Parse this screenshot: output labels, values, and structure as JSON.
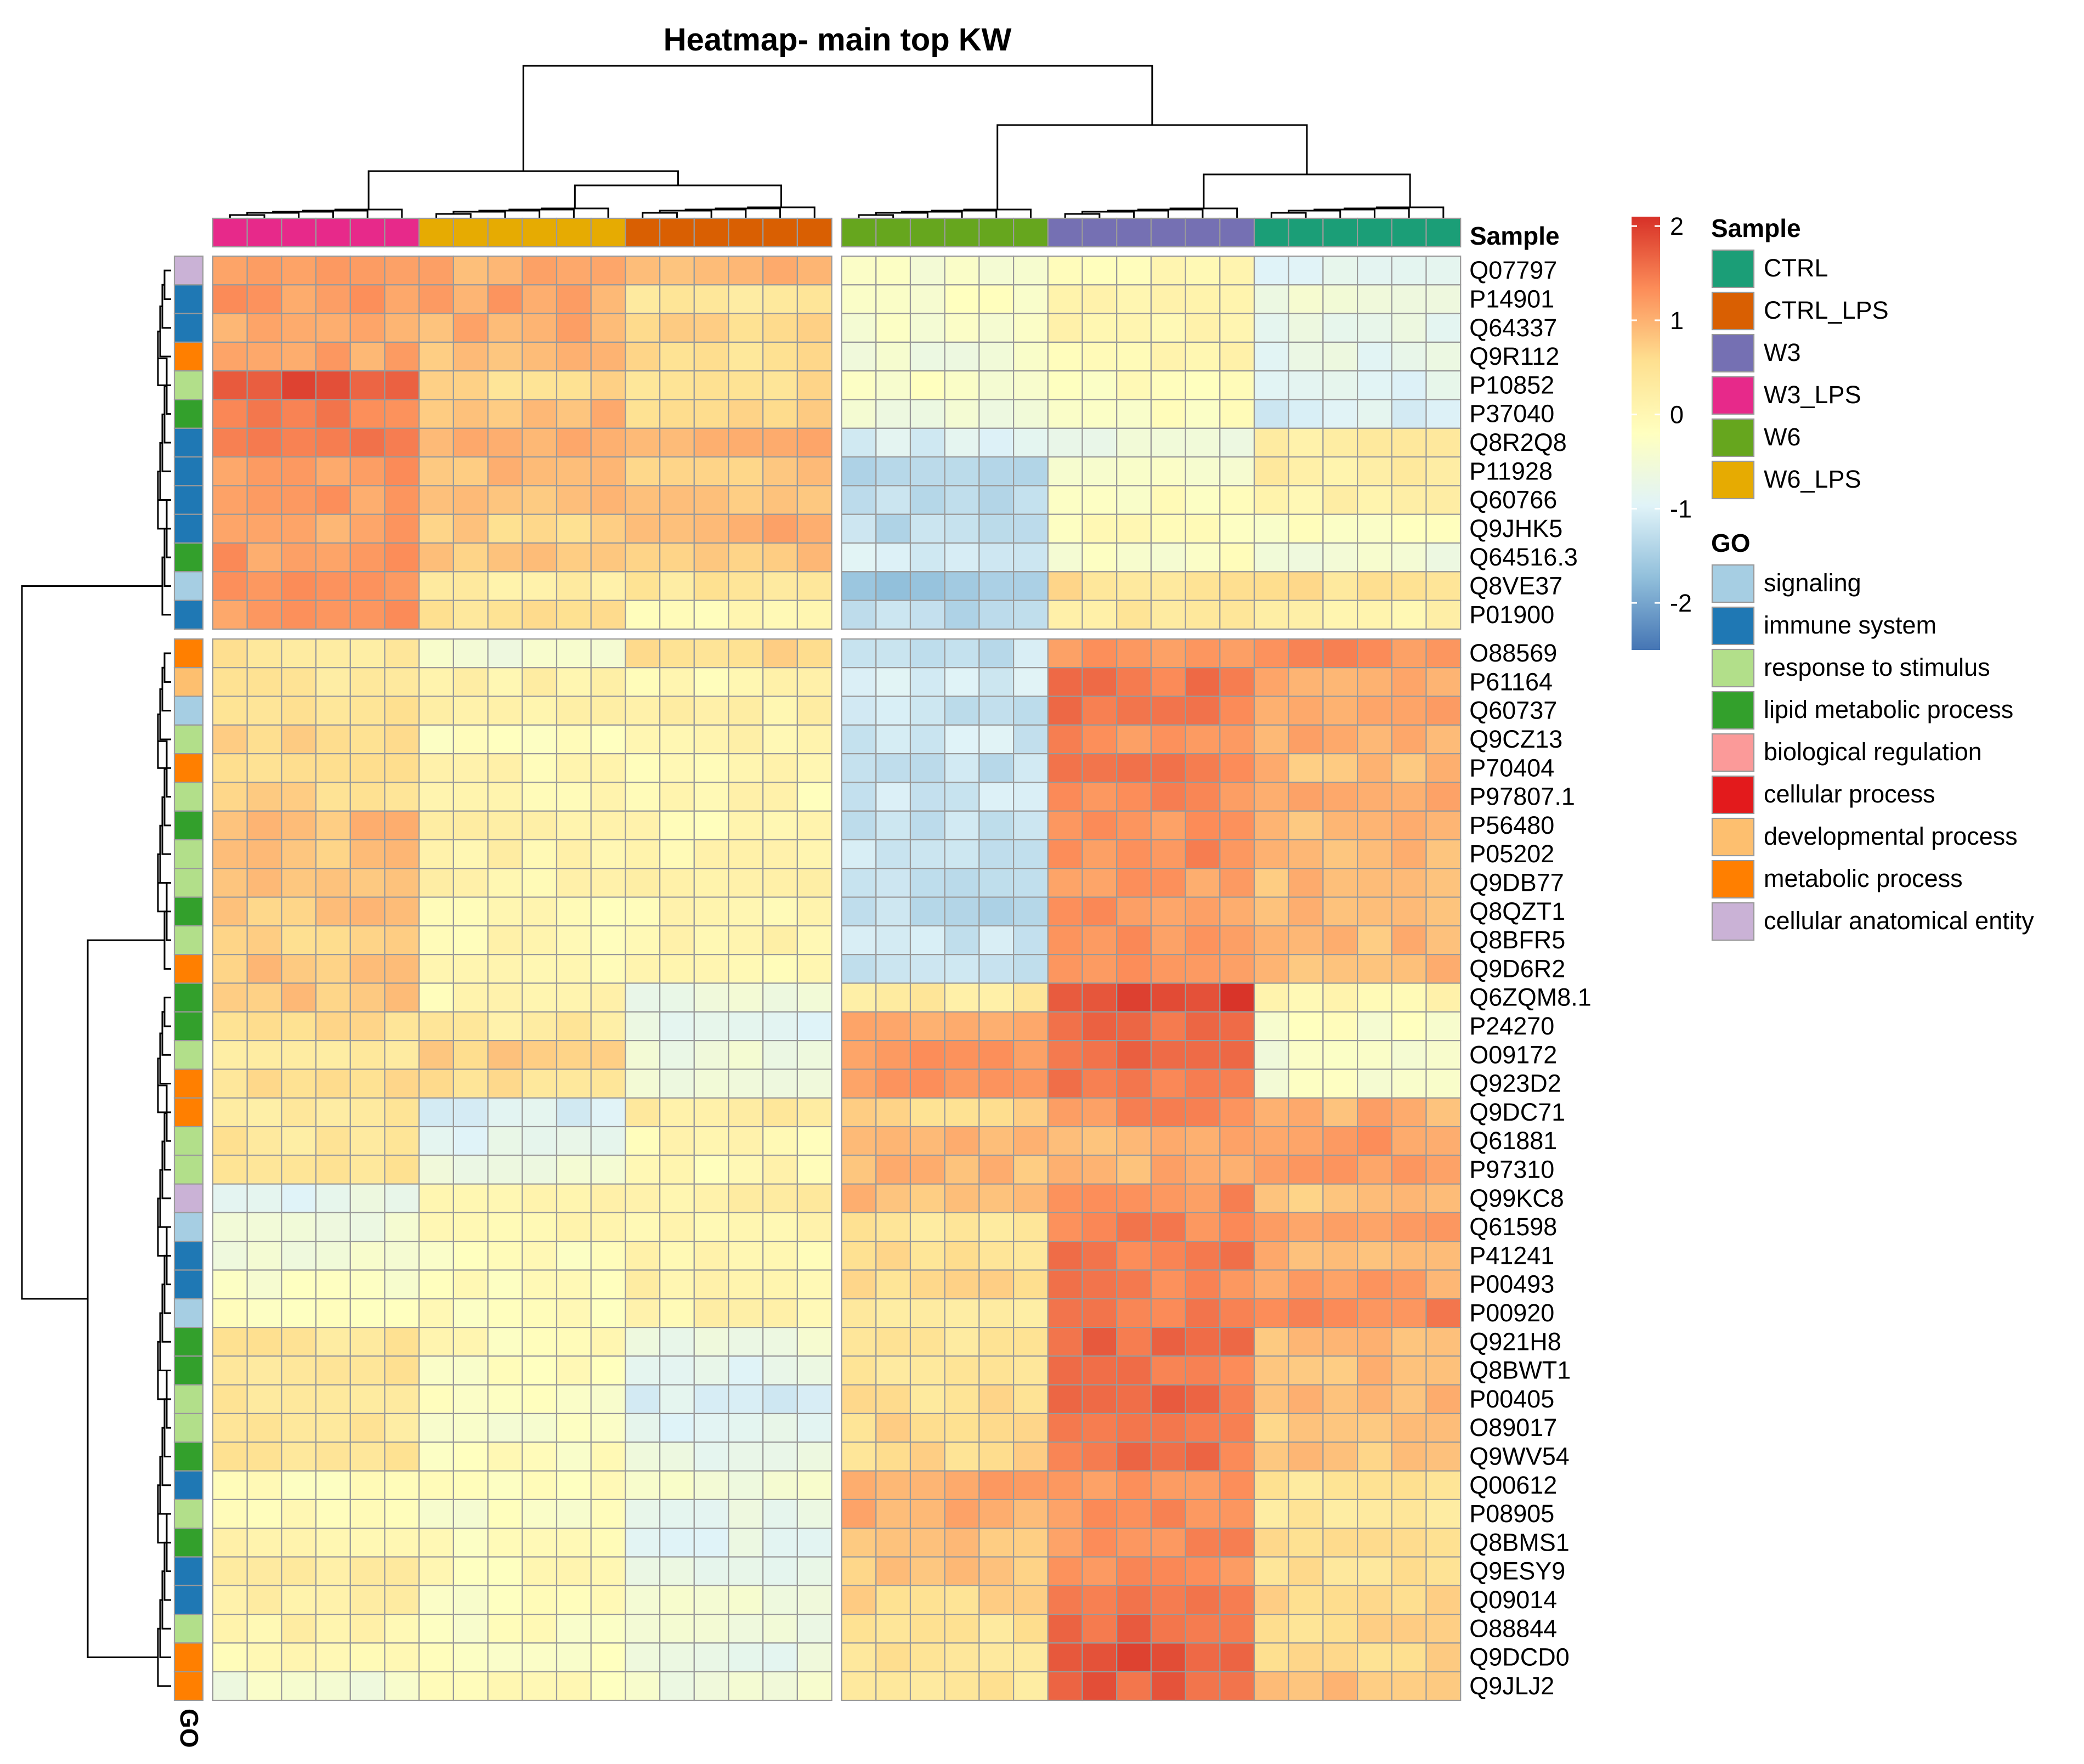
{
  "chart_data": {
    "type": "heatmap",
    "title": "Heatmap- main top KW",
    "color_scale": {
      "range": [
        -2.5,
        2.1
      ],
      "ticks": [
        2,
        1,
        0,
        -1,
        -2
      ],
      "tick_labels": [
        "2",
        "1",
        "0",
        "-1",
        "-2"
      ],
      "colors": [
        "#4575B4",
        "#91BFDB",
        "#E0F3F8",
        "#FFFFBF",
        "#FEE090",
        "#FC8D59",
        "#D73027"
      ]
    },
    "column_groups": [
      "W3_LPS",
      "W6_LPS",
      "CTRL_LPS",
      "W6",
      "W3",
      "CTRL"
    ],
    "columns_per_group": 6,
    "column_split_after_group": 2,
    "annotation_titles": {
      "sample": "Sample",
      "go": "GO"
    },
    "sample_legend": [
      {
        "label": "CTRL",
        "color": "#1B9E77"
      },
      {
        "label": "CTRL_LPS",
        "color": "#D95F02"
      },
      {
        "label": "W3",
        "color": "#7570B3"
      },
      {
        "label": "W3_LPS",
        "color": "#E7298A"
      },
      {
        "label": "W6",
        "color": "#66A61E"
      },
      {
        "label": "W6_LPS",
        "color": "#E6AB02"
      }
    ],
    "go_legend": [
      {
        "label": "signaling",
        "color": "#A6CEE3"
      },
      {
        "label": "immune system",
        "color": "#1F78B4"
      },
      {
        "label": "response to stimulus",
        "color": "#B2DF8A"
      },
      {
        "label": "lipid metabolic process",
        "color": "#33A02C"
      },
      {
        "label": "biological regulation",
        "color": "#FB9A99"
      },
      {
        "label": "cellular process",
        "color": "#E31A1C"
      },
      {
        "label": "developmental process",
        "color": "#FDBF6F"
      },
      {
        "label": "metabolic process",
        "color": "#FF7F00"
      },
      {
        "label": "cellular anatomical entity",
        "color": "#CAB2D6"
      }
    ],
    "row_split_after": 13,
    "rows": [
      {
        "id": "Q07797",
        "go": "cellular anatomical entity",
        "values": [
          1.3,
          1.0,
          0.9,
          -0.4,
          -0.1,
          -0.9
        ]
      },
      {
        "id": "P14901",
        "go": "immune system",
        "values": [
          1.2,
          1.1,
          0.4,
          -0.3,
          0.1,
          -0.6
        ]
      },
      {
        "id": "Q64337",
        "go": "immune system",
        "values": [
          1.1,
          1.0,
          0.6,
          -0.4,
          0.0,
          -0.7
        ]
      },
      {
        "id": "Q9R112",
        "go": "metabolic process",
        "values": [
          1.1,
          0.9,
          0.5,
          -0.5,
          0.0,
          -0.8
        ]
      },
      {
        "id": "P10852",
        "go": "response to stimulus",
        "values": [
          1.8,
          0.6,
          0.5,
          -0.3,
          -0.2,
          -0.9
        ]
      },
      {
        "id": "P37040",
        "go": "lipid metabolic process",
        "values": [
          1.4,
          0.9,
          0.6,
          -0.5,
          -0.2,
          -1.0
        ]
      },
      {
        "id": "Q8R2Q8",
        "go": "immune system",
        "values": [
          1.4,
          1.0,
          1.0,
          -1.0,
          -0.6,
          0.3
        ]
      },
      {
        "id": "P11928",
        "go": "immune system",
        "values": [
          1.2,
          0.9,
          0.8,
          -1.3,
          -0.3,
          0.2
        ]
      },
      {
        "id": "Q60766",
        "go": "immune system",
        "values": [
          1.2,
          0.8,
          0.9,
          -1.3,
          -0.2,
          0.1
        ]
      },
      {
        "id": "Q9JHK5",
        "go": "immune system",
        "values": [
          1.1,
          0.7,
          1.0,
          -1.3,
          -0.1,
          -0.3
        ]
      },
      {
        "id": "Q64516.3",
        "go": "lipid metabolic process",
        "values": [
          1.2,
          0.8,
          0.8,
          -1.0,
          -0.3,
          -0.5
        ]
      },
      {
        "id": "Q8VE37",
        "go": "signaling",
        "values": [
          1.2,
          0.2,
          0.4,
          -1.6,
          0.5,
          0.5
        ]
      },
      {
        "id": "P01900",
        "go": "immune system",
        "values": [
          1.2,
          0.5,
          0.0,
          -1.3,
          0.3,
          0.1
        ]
      },
      {
        "id": "O88569",
        "go": "metabolic process",
        "values": [
          0.4,
          -0.5,
          0.6,
          -1.2,
          1.2,
          1.3
        ]
      },
      {
        "id": "P61164",
        "go": "developmental process",
        "values": [
          0.4,
          0.1,
          0.0,
          -1.0,
          1.5,
          1.1
        ]
      },
      {
        "id": "Q60737",
        "go": "signaling",
        "values": [
          0.5,
          0.1,
          0.1,
          -1.2,
          1.5,
          1.1
        ]
      },
      {
        "id": "Q9CZ13",
        "go": "response to stimulus",
        "values": [
          0.6,
          -0.2,
          0.1,
          -1.1,
          1.3,
          1.0
        ]
      },
      {
        "id": "P70404",
        "go": "metabolic process",
        "values": [
          0.6,
          0.0,
          0.0,
          -1.2,
          1.4,
          0.9
        ]
      },
      {
        "id": "P97807.1",
        "go": "response to stimulus",
        "values": [
          0.6,
          0.0,
          0.0,
          -1.1,
          1.3,
          1.0
        ]
      },
      {
        "id": "P56480",
        "go": "lipid metabolic process",
        "values": [
          0.9,
          0.1,
          0.0,
          -1.2,
          1.3,
          0.9
        ]
      },
      {
        "id": "P05202",
        "go": "response to stimulus",
        "values": [
          0.8,
          0.1,
          0.1,
          -1.2,
          1.3,
          0.9
        ]
      },
      {
        "id": "Q9DB77",
        "go": "response to stimulus",
        "values": [
          0.8,
          0.1,
          0.1,
          -1.3,
          1.2,
          0.9
        ]
      },
      {
        "id": "Q8QZT1",
        "go": "lipid metabolic process",
        "values": [
          0.8,
          0.0,
          0.0,
          -1.3,
          1.2,
          0.9
        ]
      },
      {
        "id": "Q8BFR5",
        "go": "response to stimulus",
        "values": [
          0.7,
          0.0,
          0.1,
          -1.2,
          1.2,
          0.9
        ]
      },
      {
        "id": "Q9D6R2",
        "go": "metabolic process",
        "values": [
          0.8,
          0.0,
          0.0,
          -1.2,
          1.2,
          0.9
        ]
      },
      {
        "id": "Q6ZQM8.1",
        "go": "lipid metabolic process",
        "values": [
          0.8,
          0.0,
          -0.6,
          0.3,
          1.9,
          0.0
        ]
      },
      {
        "id": "P24270",
        "go": "lipid metabolic process",
        "values": [
          0.5,
          0.3,
          -0.8,
          1.0,
          1.6,
          -0.3
        ]
      },
      {
        "id": "O09172",
        "go": "response to stimulus",
        "values": [
          0.4,
          0.7,
          -0.6,
          1.2,
          1.6,
          -0.4
        ]
      },
      {
        "id": "Q923D2",
        "go": "metabolic process",
        "values": [
          0.5,
          0.5,
          -0.6,
          1.2,
          1.5,
          -0.4
        ]
      },
      {
        "id": "Q9DC71",
        "go": "metabolic process",
        "values": [
          0.3,
          -1.0,
          0.3,
          0.6,
          1.3,
          1.0
        ]
      },
      {
        "id": "Q61881",
        "go": "response to stimulus",
        "values": [
          0.4,
          -0.8,
          0.0,
          0.9,
          1.0,
          1.2
        ]
      },
      {
        "id": "P97310",
        "go": "response to stimulus",
        "values": [
          0.4,
          -0.6,
          0.0,
          0.9,
          1.0,
          1.2
        ]
      },
      {
        "id": "Q99KC8",
        "go": "cellular anatomical entity",
        "values": [
          -0.8,
          0.0,
          0.2,
          0.9,
          1.3,
          0.8
        ]
      },
      {
        "id": "Q61598",
        "go": "signaling",
        "values": [
          -0.5,
          0.0,
          0.0,
          0.4,
          1.4,
          1.1
        ]
      },
      {
        "id": "P41241",
        "go": "immune system",
        "values": [
          -0.5,
          -0.2,
          0.0,
          0.5,
          1.5,
          1.0
        ]
      },
      {
        "id": "P00493",
        "go": "immune system",
        "values": [
          -0.3,
          -0.1,
          0.1,
          0.6,
          1.4,
          1.1
        ]
      },
      {
        "id": "P00920",
        "go": "signaling",
        "values": [
          -0.3,
          -0.2,
          0.1,
          0.4,
          1.4,
          1.4
        ]
      },
      {
        "id": "Q921H8",
        "go": "lipid metabolic process",
        "values": [
          0.4,
          -0.1,
          -0.6,
          0.4,
          1.6,
          0.9
        ]
      },
      {
        "id": "Q8BWT1",
        "go": "lipid metabolic process",
        "values": [
          0.4,
          -0.2,
          -0.8,
          0.4,
          1.5,
          0.9
        ]
      },
      {
        "id": "P00405",
        "go": "response to stimulus",
        "values": [
          0.4,
          -0.3,
          -1.0,
          0.5,
          1.6,
          0.9
        ]
      },
      {
        "id": "O89017",
        "go": "response to stimulus",
        "values": [
          0.4,
          -0.3,
          -0.8,
          0.6,
          1.5,
          0.8
        ]
      },
      {
        "id": "Q9WV54",
        "go": "lipid metabolic process",
        "values": [
          0.4,
          -0.2,
          -0.7,
          0.6,
          1.5,
          0.8
        ]
      },
      {
        "id": "Q00612",
        "go": "immune system",
        "values": [
          -0.1,
          -0.2,
          -0.5,
          1.1,
          1.3,
          0.4
        ]
      },
      {
        "id": "P08905",
        "go": "response to stimulus",
        "values": [
          0.0,
          -0.3,
          -0.8,
          1.0,
          1.3,
          0.4
        ]
      },
      {
        "id": "Q8BMS1",
        "go": "lipid metabolic process",
        "values": [
          0.1,
          -0.2,
          -0.8,
          0.8,
          1.3,
          0.5
        ]
      },
      {
        "id": "Q9ESY9",
        "go": "immune system",
        "values": [
          0.2,
          -0.1,
          -0.7,
          0.8,
          1.3,
          0.5
        ]
      },
      {
        "id": "Q09014",
        "go": "immune system",
        "values": [
          0.2,
          -0.2,
          -0.5,
          0.6,
          1.5,
          0.6
        ]
      },
      {
        "id": "O88844",
        "go": "response to stimulus",
        "values": [
          0.1,
          -0.2,
          -0.6,
          0.5,
          1.6,
          0.6
        ]
      },
      {
        "id": "Q9DCD0",
        "go": "metabolic process",
        "values": [
          0.0,
          -0.3,
          -0.7,
          0.5,
          1.8,
          0.6
        ]
      },
      {
        "id": "Q9JLJ2",
        "go": "metabolic process",
        "values": [
          -0.5,
          -0.1,
          -0.5,
          0.4,
          1.7,
          0.9
        ]
      }
    ]
  }
}
